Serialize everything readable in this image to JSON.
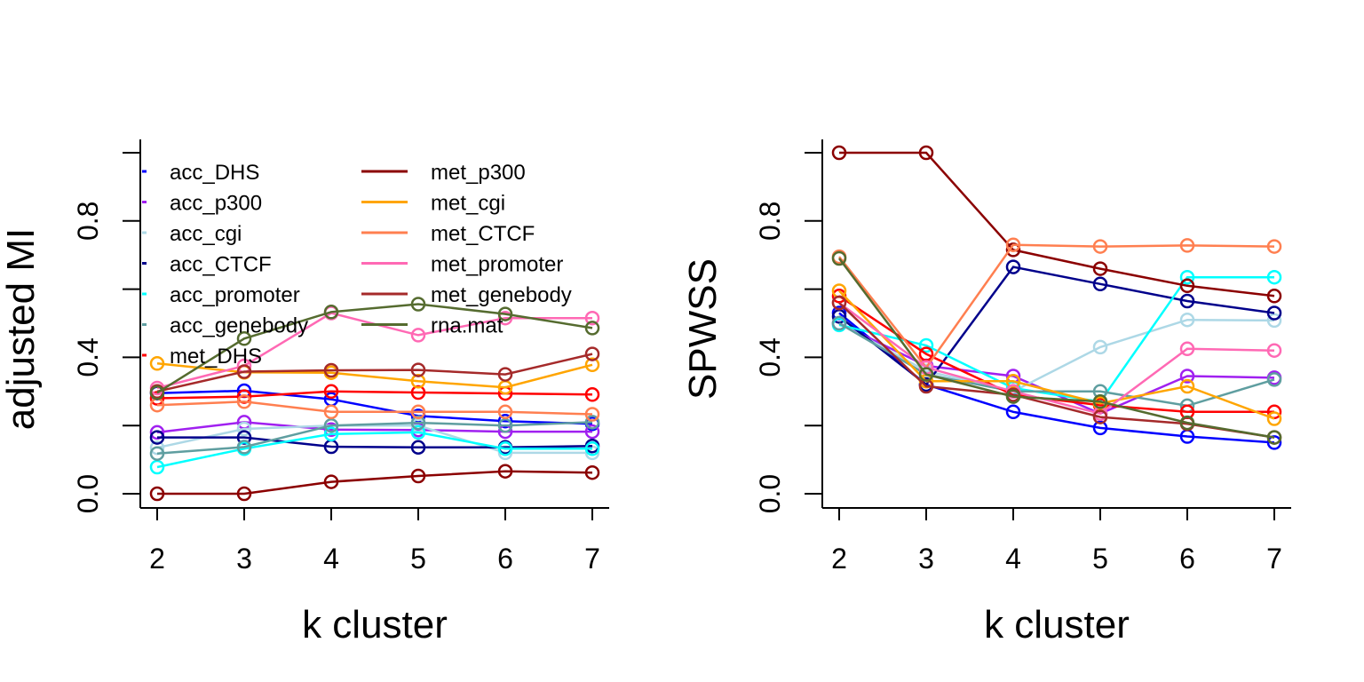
{
  "chart_data": [
    {
      "type": "line",
      "xlabel": "k cluster",
      "ylabel": "adjusted MI",
      "x": [
        2,
        3,
        4,
        5,
        6,
        7
      ],
      "xticks": [
        "2",
        "3",
        "4",
        "5",
        "6",
        "7"
      ],
      "yticks": [
        "0.0",
        "0.4",
        "0.8"
      ],
      "ylim": [
        0,
        1
      ],
      "legend": "top-left, two columns",
      "markers": "open circles",
      "series": [
        {
          "name": "acc_DHS",
          "color": "#0000FF",
          "values": [
            0.295,
            0.302,
            0.277,
            0.228,
            0.213,
            0.205
          ]
        },
        {
          "name": "acc_p300",
          "color": "#A020F0",
          "values": [
            0.18,
            0.21,
            0.188,
            0.187,
            0.182,
            0.182
          ]
        },
        {
          "name": "acc_cgi",
          "color": "#ADD8E6",
          "values": [
            0.135,
            0.19,
            0.2,
            0.2,
            0.12,
            0.12
          ]
        },
        {
          "name": "acc_CTCF",
          "color": "#00008B",
          "values": [
            0.165,
            0.165,
            0.138,
            0.136,
            0.136,
            0.14
          ]
        },
        {
          "name": "acc_promoter",
          "color": "#00FFFF",
          "values": [
            0.078,
            0.132,
            0.175,
            0.18,
            0.132,
            0.132
          ]
        },
        {
          "name": "acc_genebody",
          "color": "#5F9EA0",
          "values": [
            0.118,
            0.137,
            0.2,
            0.208,
            0.2,
            0.21
          ]
        },
        {
          "name": "met_DHS",
          "color": "#FF0000",
          "values": [
            0.28,
            0.285,
            0.3,
            0.297,
            0.294,
            0.291
          ]
        },
        {
          "name": "met_p300",
          "color": "#8B0000",
          "values": [
            0.0,
            0.0,
            0.035,
            0.052,
            0.066,
            0.062
          ]
        },
        {
          "name": "met_cgi",
          "color": "#FFA500",
          "values": [
            0.382,
            0.356,
            0.355,
            0.33,
            0.312,
            0.378
          ]
        },
        {
          "name": "met_CTCF",
          "color": "#FF7F50",
          "values": [
            0.26,
            0.27,
            0.24,
            0.24,
            0.24,
            0.233
          ]
        },
        {
          "name": "met_promoter",
          "color": "#FF69B4",
          "values": [
            0.31,
            0.375,
            0.53,
            0.465,
            0.515,
            0.515
          ]
        },
        {
          "name": "met_genebody",
          "color": "#A52A2A",
          "values": [
            0.3,
            0.358,
            0.362,
            0.363,
            0.35,
            0.41
          ]
        },
        {
          "name": "rna.mat",
          "color": "#556B2F",
          "values": [
            0.296,
            0.455,
            0.533,
            0.556,
            0.527,
            0.486
          ]
        }
      ]
    },
    {
      "type": "line",
      "xlabel": "k cluster",
      "ylabel": "SPWSS",
      "x": [
        2,
        3,
        4,
        5,
        6,
        7
      ],
      "xticks": [
        "2",
        "3",
        "4",
        "5",
        "6",
        "7"
      ],
      "yticks": [
        "0.0",
        "0.4",
        "0.8"
      ],
      "ylim": [
        0,
        1
      ],
      "markers": "open circles",
      "series": [
        {
          "color": "#0000FF",
          "values": [
            0.53,
            0.32,
            0.24,
            0.193,
            0.168,
            0.15
          ]
        },
        {
          "color": "#A020F0",
          "values": [
            0.5,
            0.375,
            0.345,
            0.235,
            0.345,
            0.34
          ]
        },
        {
          "color": "#ADD8E6",
          "values": [
            0.5,
            0.36,
            0.3,
            0.43,
            0.51,
            0.508
          ]
        },
        {
          "color": "#00008B",
          "values": [
            0.52,
            0.32,
            0.665,
            0.615,
            0.565,
            0.53
          ]
        },
        {
          "color": "#00FFFF",
          "values": [
            0.495,
            0.435,
            0.31,
            0.27,
            0.635,
            0.635
          ]
        },
        {
          "color": "#5F9EA0",
          "values": [
            0.5,
            0.35,
            0.3,
            0.3,
            0.258,
            0.335
          ]
        },
        {
          "color": "#FF0000",
          "values": [
            0.58,
            0.41,
            0.29,
            0.26,
            0.24,
            0.24
          ]
        },
        {
          "color": "#8B0000",
          "values": [
            1.0,
            1.0,
            0.715,
            0.66,
            0.61,
            0.58
          ]
        },
        {
          "color": "#FFA500",
          "values": [
            0.595,
            0.33,
            0.33,
            0.265,
            0.315,
            0.22
          ]
        },
        {
          "color": "#FF7F50",
          "values": [
            0.695,
            0.37,
            0.73,
            0.725,
            0.728,
            0.725
          ]
        },
        {
          "color": "#FF69B4",
          "values": [
            0.56,
            0.37,
            0.3,
            0.235,
            0.425,
            0.42
          ]
        },
        {
          "color": "#A52A2A",
          "values": [
            0.56,
            0.315,
            0.29,
            0.225,
            0.205,
            0.165
          ]
        },
        {
          "color": "#556B2F",
          "values": [
            0.69,
            0.35,
            0.285,
            0.27,
            0.208,
            0.165
          ]
        }
      ]
    }
  ]
}
